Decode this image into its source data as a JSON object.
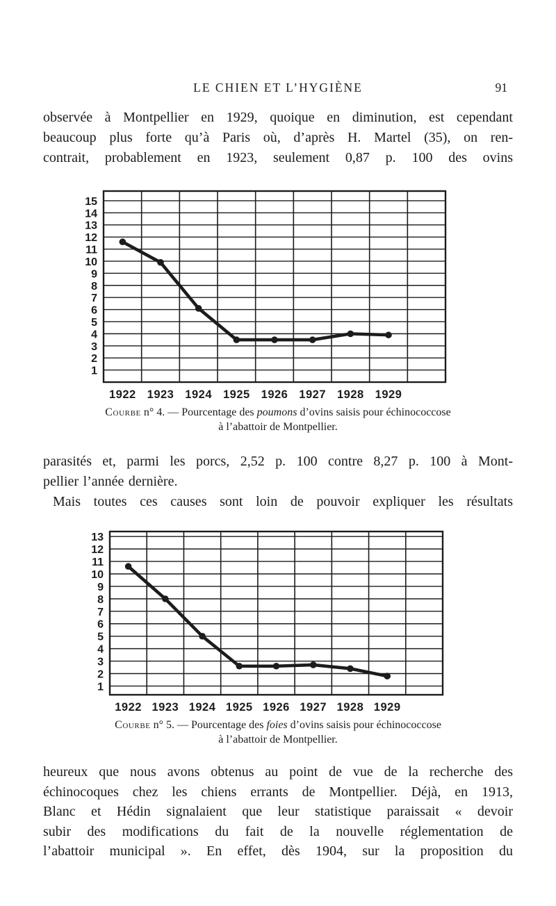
{
  "page": {
    "header": {
      "title": "LE CHIEN ET L’HYGIÈNE",
      "page_number": "91"
    },
    "paragraph1_lines": [
      "observée à Montpellier en 1929, quoique en diminution, est cependant",
      "beaucoup plus forte qu’à Paris où,  d’après H. Martel (35), on ren-",
      "contrait,  probablement en 1923, seulement 0,87 p. 100 des ovins"
    ],
    "paragraph2_lines": [
      "parasités et, parmi les porcs, 2,52 p. 100 contre 8,27 p. 100 à Mont-",
      "pellier l’année dernière."
    ],
    "paragraph2b_lines": [
      "Mais toutes ces causes sont loin de pouvoir expliquer les résultats"
    ],
    "paragraph3_lines": [
      "heureux que nous avons obtenus au point de vue de la recherche des",
      "échinocoques chez les chiens errants de Montpellier. Déjà, en 1913,",
      "Blanc et Hédin signalaient que leur statistique paraissait « devoir",
      "subir des modifications du fait de la nouvelle réglementation de",
      "l’abattoir municipal ». En effet, dès 1904, sur la proposition du"
    ]
  },
  "captions": [
    {
      "smallcaps": "Courbe",
      "before_italic": " n° 4. — Pourcentage des ",
      "italic": "poumons",
      "after_italic": " d’ovins saisis pour échinococcose",
      "line2": "à l’abattoir de Montpellier."
    },
    {
      "smallcaps": "Courbe",
      "before_italic": " n° 5. — Pourcentage des ",
      "italic": "foies",
      "after_italic": " d’ovins saisis pour échinococcose",
      "line2": "à l’abattoir de Montpellier."
    }
  ],
  "chart_data": [
    {
      "type": "line",
      "title": "Courbe n° 4. — Pourcentage des poumons d’ovins saisis pour échinococcose à l’abattoir de Montpellier.",
      "categories": [
        "1922",
        "1923",
        "1924",
        "1925",
        "1926",
        "1927",
        "1928",
        "1929"
      ],
      "values": [
        11.6,
        9.9,
        6.1,
        3.5,
        3.5,
        3.5,
        4.0,
        3.9
      ],
      "xlabel": "",
      "ylabel": "",
      "ylim": [
        0,
        15.8
      ],
      "yticks": [
        1,
        2,
        3,
        4,
        5,
        6,
        7,
        8,
        9,
        10,
        11,
        12,
        13,
        14,
        15
      ],
      "columns": 9,
      "grid": true,
      "legend": false,
      "marker": "dot",
      "ink": "#1c1c1c"
    },
    {
      "type": "line",
      "title": "Courbe n° 5. — Pourcentage des foies d’ovins saisis pour échinococcose à l’abattoir de Montpellier.",
      "categories": [
        "1922",
        "1923",
        "1924",
        "1925",
        "1926",
        "1927",
        "1928",
        "1929"
      ],
      "values": [
        10.6,
        8.0,
        5.0,
        2.6,
        2.6,
        2.7,
        2.4,
        1.8
      ],
      "xlabel": "",
      "ylabel": "",
      "ylim": [
        0.3,
        13.4
      ],
      "yticks": [
        1,
        2,
        3,
        4,
        5,
        6,
        7,
        8,
        9,
        10,
        11,
        12,
        13
      ],
      "columns": 9,
      "grid": true,
      "legend": false,
      "marker": "dot",
      "ink": "#1c1c1c"
    }
  ]
}
